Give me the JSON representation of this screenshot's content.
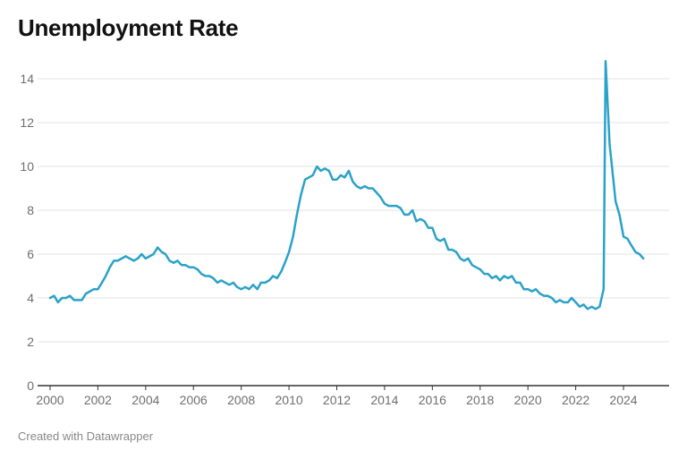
{
  "chart_data": {
    "type": "line",
    "title": "Unemployment Rate",
    "xlabel": "",
    "ylabel": "",
    "xlim": [
      2000.0,
      2025.6
    ],
    "ylim": [
      0,
      15
    ],
    "x_ticks": [
      "2000",
      "2002",
      "2004",
      "2006",
      "2008",
      "2010",
      "2012",
      "2014",
      "2016",
      "2018",
      "2020",
      "2022",
      "2024"
    ],
    "y_ticks": [
      "0",
      "2",
      "4",
      "6",
      "8",
      "10",
      "12",
      "14"
    ],
    "grid": true,
    "legend": "none",
    "line_color": "#2ba2c8",
    "series": [
      {
        "name": "",
        "points": [
          [
            2000.0,
            4.0
          ],
          [
            2000.17,
            4.1
          ],
          [
            2000.33,
            3.8
          ],
          [
            2000.5,
            4.0
          ],
          [
            2000.67,
            4.0
          ],
          [
            2000.83,
            4.1
          ],
          [
            2001.0,
            3.9
          ],
          [
            2001.17,
            3.9
          ],
          [
            2001.33,
            3.9
          ],
          [
            2001.5,
            4.2
          ],
          [
            2001.67,
            4.3
          ],
          [
            2001.83,
            4.4
          ],
          [
            2002.0,
            4.4
          ],
          [
            2002.17,
            4.7
          ],
          [
            2002.33,
            5.0
          ],
          [
            2002.5,
            5.4
          ],
          [
            2002.67,
            5.7
          ],
          [
            2002.83,
            5.7
          ],
          [
            2003.0,
            5.8
          ],
          [
            2003.17,
            5.9
          ],
          [
            2003.33,
            5.8
          ],
          [
            2003.5,
            5.7
          ],
          [
            2003.67,
            5.8
          ],
          [
            2003.83,
            6.0
          ],
          [
            2004.0,
            5.8
          ],
          [
            2004.17,
            5.9
          ],
          [
            2004.33,
            6.0
          ],
          [
            2004.5,
            6.3
          ],
          [
            2004.67,
            6.1
          ],
          [
            2004.83,
            6.0
          ],
          [
            2005.0,
            5.7
          ],
          [
            2005.17,
            5.6
          ],
          [
            2005.33,
            5.7
          ],
          [
            2005.5,
            5.5
          ],
          [
            2005.67,
            5.5
          ],
          [
            2005.83,
            5.4
          ],
          [
            2006.0,
            5.4
          ],
          [
            2006.17,
            5.3
          ],
          [
            2006.33,
            5.1
          ],
          [
            2006.5,
            5.0
          ],
          [
            2006.67,
            5.0
          ],
          [
            2006.83,
            4.9
          ],
          [
            2007.0,
            4.7
          ],
          [
            2007.17,
            4.8
          ],
          [
            2007.33,
            4.7
          ],
          [
            2007.5,
            4.6
          ],
          [
            2007.67,
            4.7
          ],
          [
            2007.83,
            4.5
          ],
          [
            2008.0,
            4.4
          ],
          [
            2008.17,
            4.5
          ],
          [
            2008.33,
            4.4
          ],
          [
            2008.5,
            4.6
          ],
          [
            2008.67,
            4.4
          ],
          [
            2008.83,
            4.7
          ],
          [
            2009.0,
            4.7
          ],
          [
            2009.17,
            4.8
          ],
          [
            2009.33,
            5.0
          ],
          [
            2009.5,
            4.9
          ],
          [
            2009.67,
            5.2
          ],
          [
            2009.83,
            5.6
          ],
          [
            2010.0,
            6.1
          ],
          [
            2010.17,
            6.8
          ],
          [
            2010.33,
            7.8
          ],
          [
            2010.5,
            8.7
          ],
          [
            2010.67,
            9.4
          ],
          [
            2010.83,
            9.5
          ],
          [
            2011.0,
            9.6
          ],
          [
            2011.17,
            10.0
          ],
          [
            2011.33,
            9.8
          ],
          [
            2011.5,
            9.9
          ],
          [
            2011.67,
            9.8
          ],
          [
            2011.83,
            9.4
          ],
          [
            2012.0,
            9.4
          ],
          [
            2012.17,
            9.6
          ],
          [
            2012.33,
            9.5
          ],
          [
            2012.5,
            9.8
          ],
          [
            2012.67,
            9.3
          ],
          [
            2012.83,
            9.1
          ],
          [
            2013.0,
            9.0
          ],
          [
            2013.17,
            9.1
          ],
          [
            2013.33,
            9.0
          ],
          [
            2013.5,
            9.0
          ],
          [
            2013.67,
            8.8
          ],
          [
            2013.83,
            8.6
          ],
          [
            2014.0,
            8.3
          ],
          [
            2014.17,
            8.2
          ],
          [
            2014.33,
            8.2
          ],
          [
            2014.5,
            8.2
          ],
          [
            2014.67,
            8.1
          ],
          [
            2014.83,
            7.8
          ],
          [
            2015.0,
            7.8
          ],
          [
            2015.17,
            8.0
          ],
          [
            2015.33,
            7.5
          ],
          [
            2015.5,
            7.6
          ],
          [
            2015.67,
            7.5
          ],
          [
            2015.83,
            7.2
          ],
          [
            2016.0,
            7.2
          ],
          [
            2016.17,
            6.7
          ],
          [
            2016.33,
            6.6
          ],
          [
            2016.5,
            6.7
          ],
          [
            2016.67,
            6.2
          ],
          [
            2016.83,
            6.2
          ],
          [
            2017.0,
            6.1
          ],
          [
            2017.17,
            5.8
          ],
          [
            2017.33,
            5.7
          ],
          [
            2017.5,
            5.8
          ],
          [
            2017.67,
            5.5
          ],
          [
            2017.83,
            5.4
          ],
          [
            2018.0,
            5.3
          ],
          [
            2018.17,
            5.1
          ],
          [
            2018.33,
            5.1
          ],
          [
            2018.5,
            4.9
          ],
          [
            2018.67,
            5.0
          ],
          [
            2018.83,
            4.8
          ],
          [
            2019.0,
            5.0
          ],
          [
            2019.17,
            4.9
          ],
          [
            2019.33,
            5.0
          ],
          [
            2019.5,
            4.7
          ],
          [
            2019.67,
            4.7
          ],
          [
            2019.83,
            4.4
          ],
          [
            2020.0,
            4.4
          ],
          [
            2020.17,
            4.3
          ],
          [
            2020.33,
            4.4
          ],
          [
            2020.5,
            4.2
          ],
          [
            2020.67,
            4.1
          ],
          [
            2020.83,
            4.1
          ],
          [
            2021.0,
            4.0
          ],
          [
            2021.17,
            3.8
          ],
          [
            2021.33,
            3.9
          ],
          [
            2021.5,
            3.8
          ],
          [
            2021.67,
            3.8
          ],
          [
            2021.83,
            4.0
          ],
          [
            2022.0,
            3.8
          ],
          [
            2022.17,
            3.6
          ],
          [
            2022.33,
            3.7
          ],
          [
            2022.5,
            3.5
          ],
          [
            2022.67,
            3.6
          ],
          [
            2022.83,
            3.5
          ],
          [
            2023.0,
            3.6
          ],
          [
            2023.17,
            4.4
          ],
          [
            2023.25,
            14.8
          ],
          [
            2023.42,
            11.0
          ],
          [
            2023.5,
            10.2
          ],
          [
            2023.67,
            8.4
          ],
          [
            2023.83,
            7.8
          ],
          [
            2024.0,
            6.8
          ],
          [
            2024.17,
            6.7
          ],
          [
            2024.33,
            6.4
          ],
          [
            2024.5,
            6.1
          ],
          [
            2024.67,
            6.0
          ],
          [
            2024.83,
            5.8
          ]
        ]
      }
    ]
  },
  "footer": {
    "credit": "Created with Datawrapper"
  }
}
